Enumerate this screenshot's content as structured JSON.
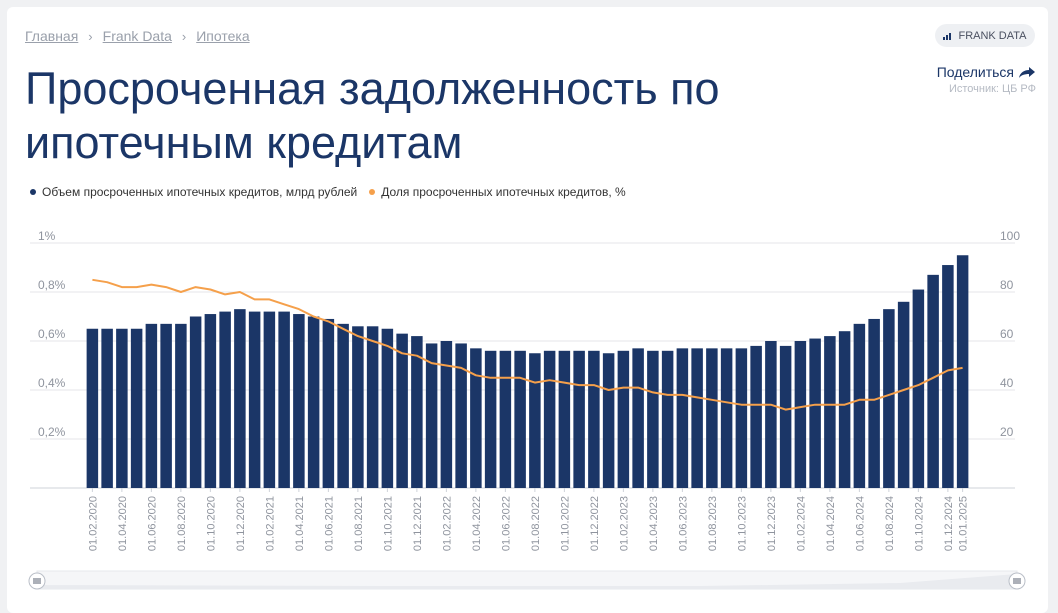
{
  "breadcrumb": {
    "items": [
      "Главная",
      "Frank Data",
      "Ипотека"
    ]
  },
  "brand_badge": "FRANK DATA",
  "title": "Просроченная задолженность по ипотечным кредитам",
  "share_label": "Поделиться",
  "source": "Источник: ЦБ РФ",
  "colors": {
    "bars": "#1b3667",
    "line": "#f5a04b",
    "title": "#1b3667"
  },
  "chart_data": {
    "type": "bar+line",
    "series": [
      {
        "name": "Объем просроченных ипотечных кредитов, млрд рублей",
        "axis": "right",
        "type": "bar",
        "values": [
          65,
          65,
          65,
          65,
          67,
          67,
          67,
          70,
          71,
          72,
          73,
          72,
          72,
          72,
          71,
          70,
          69,
          67,
          66,
          66,
          65,
          63,
          62,
          59,
          60,
          59,
          57,
          56,
          56,
          56,
          55,
          56,
          56,
          56,
          56,
          55,
          56,
          57,
          56,
          56,
          57,
          57,
          57,
          57,
          57,
          58,
          60,
          58,
          60,
          61,
          62,
          64,
          67,
          69,
          73,
          76,
          81,
          87,
          91,
          95
        ]
      },
      {
        "name": "Доля просроченных ипотечных кредитов, %",
        "axis": "left",
        "type": "line",
        "values": [
          0.85,
          0.84,
          0.82,
          0.82,
          0.83,
          0.82,
          0.8,
          0.82,
          0.81,
          0.79,
          0.8,
          0.77,
          0.77,
          0.75,
          0.73,
          0.7,
          0.68,
          0.65,
          0.62,
          0.6,
          0.58,
          0.55,
          0.54,
          0.51,
          0.5,
          0.49,
          0.46,
          0.45,
          0.45,
          0.45,
          0.43,
          0.44,
          0.43,
          0.42,
          0.42,
          0.4,
          0.41,
          0.41,
          0.39,
          0.38,
          0.38,
          0.37,
          0.36,
          0.35,
          0.34,
          0.34,
          0.34,
          0.32,
          0.33,
          0.34,
          0.34,
          0.34,
          0.36,
          0.36,
          0.38,
          0.4,
          0.42,
          0.45,
          0.48,
          0.49
        ]
      }
    ],
    "y_left": {
      "ticks": [
        "1%",
        "0,8%",
        "0,6%",
        "0,4%",
        "0,2%"
      ],
      "range": [
        0,
        1
      ]
    },
    "y_right": {
      "ticks": [
        "100",
        "80",
        "60",
        "40",
        "20"
      ],
      "range": [
        0,
        100
      ]
    },
    "x_labels": [
      "01.02.2020",
      "01.04.2020",
      "01.06.2020",
      "01.08.2020",
      "01.10.2020",
      "01.12.2020",
      "01.02.2021",
      "01.04.2021",
      "01.06.2021",
      "01.08.2021",
      "01.10.2021",
      "01.12.2021",
      "01.02.2022",
      "01.04.2022",
      "01.06.2022",
      "01.08.2022",
      "01.10.2022",
      "01.12.2022",
      "01.02.2023",
      "01.04.2023",
      "01.06.2023",
      "01.08.2023",
      "01.10.2023",
      "01.12.2023",
      "01.02.2024",
      "01.04.2024",
      "01.06.2024",
      "01.08.2024",
      "01.10.2024",
      "01.12.2024",
      "01.01.2025"
    ],
    "grid": true,
    "legend_position": "top-left"
  }
}
